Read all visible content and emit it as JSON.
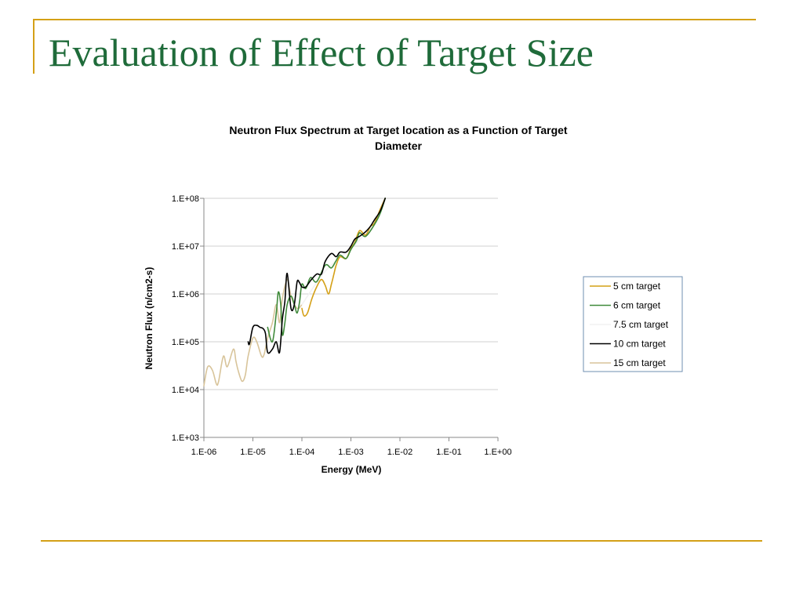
{
  "slide": {
    "title": "Evaluation of Effect of Target Size",
    "accent_color": "#d4a017",
    "title_color": "#1f6b3a"
  },
  "chart_data": {
    "type": "line",
    "title_lines": [
      "Neutron Flux Spectrum at Target location as a Function of Target",
      "Diameter"
    ],
    "xlabel": "Energy (MeV)",
    "ylabel": "Neutron Flux (n/cm2-s)",
    "x_scale": "log",
    "y_scale": "log",
    "xlim": [
      1e-06,
      1
    ],
    "ylim": [
      1000,
      100000000
    ],
    "x_ticks": [
      "1.E-06",
      "1.E-05",
      "1.E-04",
      "1.E-03",
      "1.E-02",
      "1.E-01",
      "1.E+00"
    ],
    "y_ticks": [
      "1.E+08",
      "1.E+07",
      "1.E+06",
      "1.E+05",
      "1.E+04",
      "1.E+03"
    ],
    "grid": "horizontal",
    "legend_position": "right",
    "series": [
      {
        "name": "5 cm target",
        "color": "#d4a017",
        "x": [
          0.0001,
          0.00011,
          0.00013,
          0.00016,
          0.0002,
          0.00025,
          0.0003,
          0.00035,
          0.0004,
          0.00045,
          0.0005,
          0.0006,
          0.0008,
          0.001,
          0.0012,
          0.0015,
          0.002,
          0.0025,
          0.003,
          0.004,
          0.005
        ],
        "y": [
          500000,
          350000,
          400000,
          800000,
          1400000,
          2000000,
          1500000,
          1000000,
          1600000,
          2600000,
          4000000,
          6000000,
          5500000,
          9000000,
          12000000,
          21000000,
          17000000,
          26000000,
          30000000,
          60000000,
          100000000
        ]
      },
      {
        "name": "6 cm target",
        "color": "#3f8a3a",
        "x": [
          2e-05,
          2.5e-05,
          3e-05,
          3.3e-05,
          3.7e-05,
          4e-05,
          4.5e-05,
          5e-05,
          6e-05,
          7e-05,
          8e-05,
          9e-05,
          0.0001,
          0.00012,
          0.00015,
          0.0002,
          0.0003,
          0.0004,
          0.0005,
          0.0006,
          0.0008,
          0.001,
          0.0013,
          0.0015,
          0.002,
          0.003,
          0.004,
          0.005
        ],
        "y": [
          200000,
          100000,
          400000,
          1100000,
          600000,
          140000,
          250000,
          600000,
          900000,
          600000,
          400000,
          700000,
          1600000,
          1300000,
          2200000,
          1800000,
          4000000,
          3500000,
          5000000,
          6500000,
          5500000,
          8500000,
          13000000,
          19000000,
          16000000,
          28000000,
          50000000,
          100000000
        ]
      },
      {
        "name": "7.5 cm target",
        "color": "#f2f2f2",
        "x": [
          0.0001,
          0.0003,
          0.001,
          0.003,
          0.005
        ],
        "y": [
          600000,
          3000000,
          9000000,
          30000000,
          100000000
        ]
      },
      {
        "name": "10 cm target",
        "color": "#000000",
        "x": [
          8e-06,
          8.5e-06,
          1e-05,
          1.2e-05,
          1.4e-05,
          1.6e-05,
          1.8e-05,
          2e-05,
          2.5e-05,
          3e-05,
          3.5e-05,
          4e-05,
          4.5e-05,
          5e-05,
          6e-05,
          7e-05,
          8e-05,
          9e-05,
          0.0001,
          0.00012,
          0.00015,
          0.0002,
          0.00025,
          0.0003,
          0.0004,
          0.0005,
          0.0006,
          0.0008,
          0.001,
          0.0012,
          0.0015,
          0.002,
          0.0025,
          0.003,
          0.004,
          0.005
        ],
        "y": [
          100000,
          90000,
          200000,
          220000,
          200000,
          190000,
          150000,
          60000,
          70000,
          100000,
          60000,
          300000,
          700000,
          2700000,
          500000,
          600000,
          1800000,
          1700000,
          1400000,
          1400000,
          1900000,
          2600000,
          2600000,
          4800000,
          7000000,
          6000000,
          7500000,
          7500000,
          10000000,
          14000000,
          16000000,
          20000000,
          26000000,
          35000000,
          55000000,
          100000000
        ]
      },
      {
        "name": "15 cm target",
        "color": "#d8c49a",
        "x": [
          1e-06,
          1.2e-06,
          1.5e-06,
          1.8e-06,
          2e-06,
          2.5e-06,
          3e-06,
          4e-06,
          4.5e-06,
          5e-06,
          6e-06,
          7e-06,
          8e-06,
          1e-05,
          1.2e-05,
          1.5e-05,
          1.7e-05,
          2e-05,
          2.5e-05,
          3e-05,
          3.5e-05,
          4e-05,
          5e-05,
          6e-05,
          8e-05,
          0.0001
        ],
        "y": [
          12000,
          30000,
          25000,
          13000,
          15000,
          50000,
          30000,
          70000,
          40000,
          25000,
          15000,
          20000,
          50000,
          120000,
          100000,
          50000,
          55000,
          120000,
          250000,
          600000,
          250000,
          800000,
          2000000,
          900000,
          500000,
          600000
        ]
      }
    ]
  }
}
